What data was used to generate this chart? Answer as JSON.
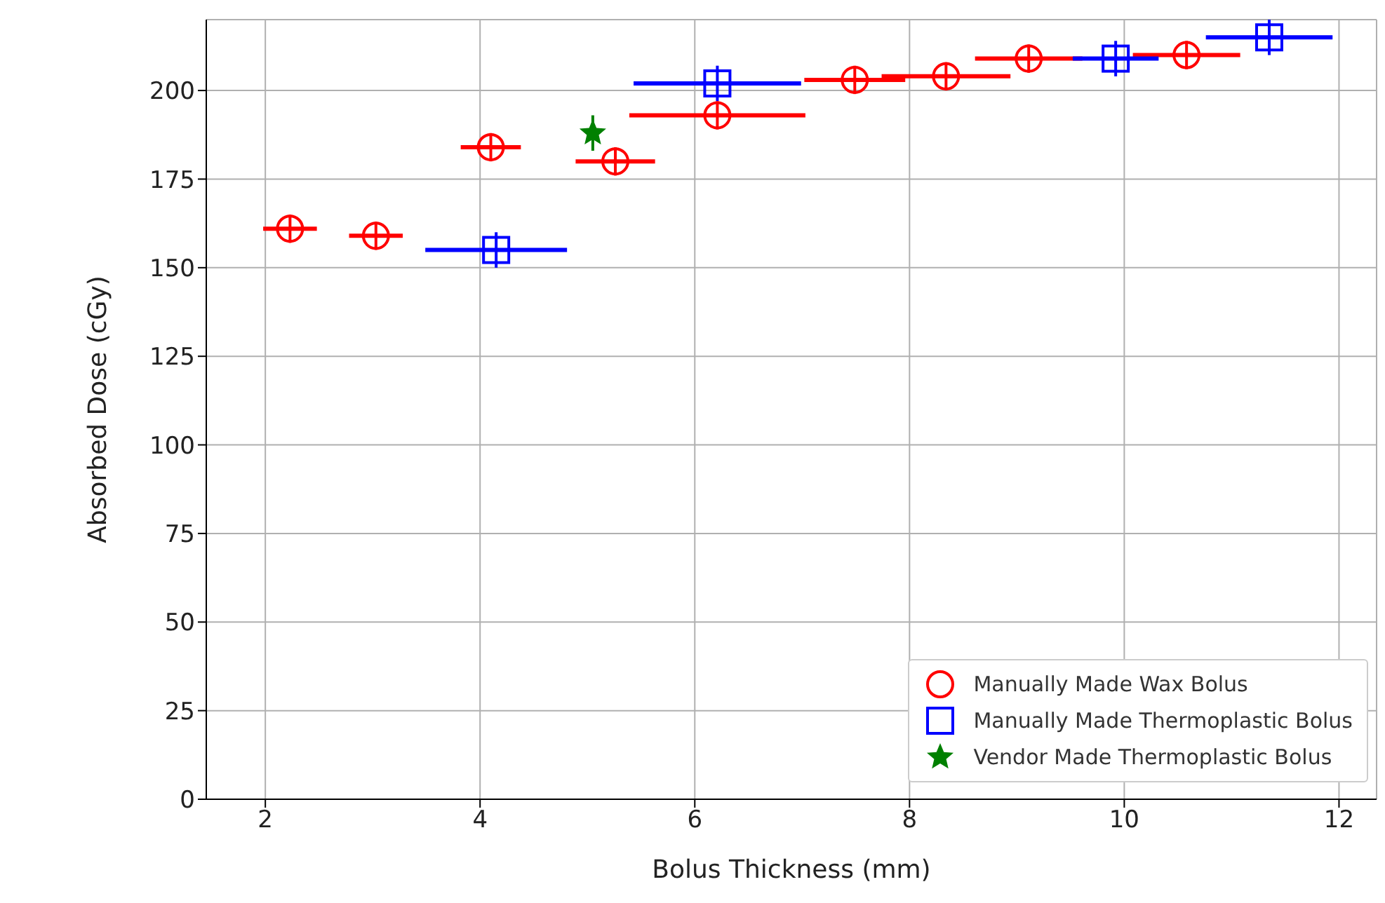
{
  "chart_data": {
    "type": "scatter",
    "xlabel": "Bolus Thickness (mm)",
    "ylabel": "Absorbed Dose (cGy)",
    "xlim": [
      1.45,
      12.35
    ],
    "xticks": [
      2,
      4,
      6,
      8,
      10,
      12
    ],
    "ylim": [
      0,
      220
    ],
    "yticks": [
      0,
      25,
      50,
      75,
      100,
      125,
      150,
      175,
      200
    ],
    "grid": true,
    "legend": "bottom right",
    "series": [
      {
        "name": "Manually Made Wax Bolus",
        "color": "#ff0000",
        "marker": "circle",
        "x": [
          2.23,
          3.03,
          4.1,
          5.26,
          6.21,
          7.49,
          8.34,
          9.11,
          10.58
        ],
        "values": [
          161,
          159,
          184,
          180,
          193,
          203,
          204,
          209,
          210
        ],
        "xerrors": [
          0.25,
          0.25,
          0.28,
          0.37,
          0.82,
          0.47,
          0.6,
          0.5,
          0.5
        ],
        "errors": [
          4,
          4,
          4,
          4,
          4,
          4,
          4,
          4,
          4
        ]
      },
      {
        "name": "Manually Made Thermoplastic Bolus",
        "color": "#0000ff",
        "marker": "square",
        "x": [
          4.15,
          6.21,
          9.92,
          11.35
        ],
        "values": [
          155,
          202,
          209,
          215
        ],
        "xerrors": [
          0.66,
          0.78,
          0.4,
          0.59
        ],
        "errors": [
          5,
          5,
          5,
          5
        ]
      },
      {
        "name": "Vendor Made Thermoplastic Bolus",
        "color": "#008000",
        "marker": "star",
        "x": [
          5.05
        ],
        "values": [
          188
        ],
        "errors": [
          5
        ]
      }
    ]
  }
}
